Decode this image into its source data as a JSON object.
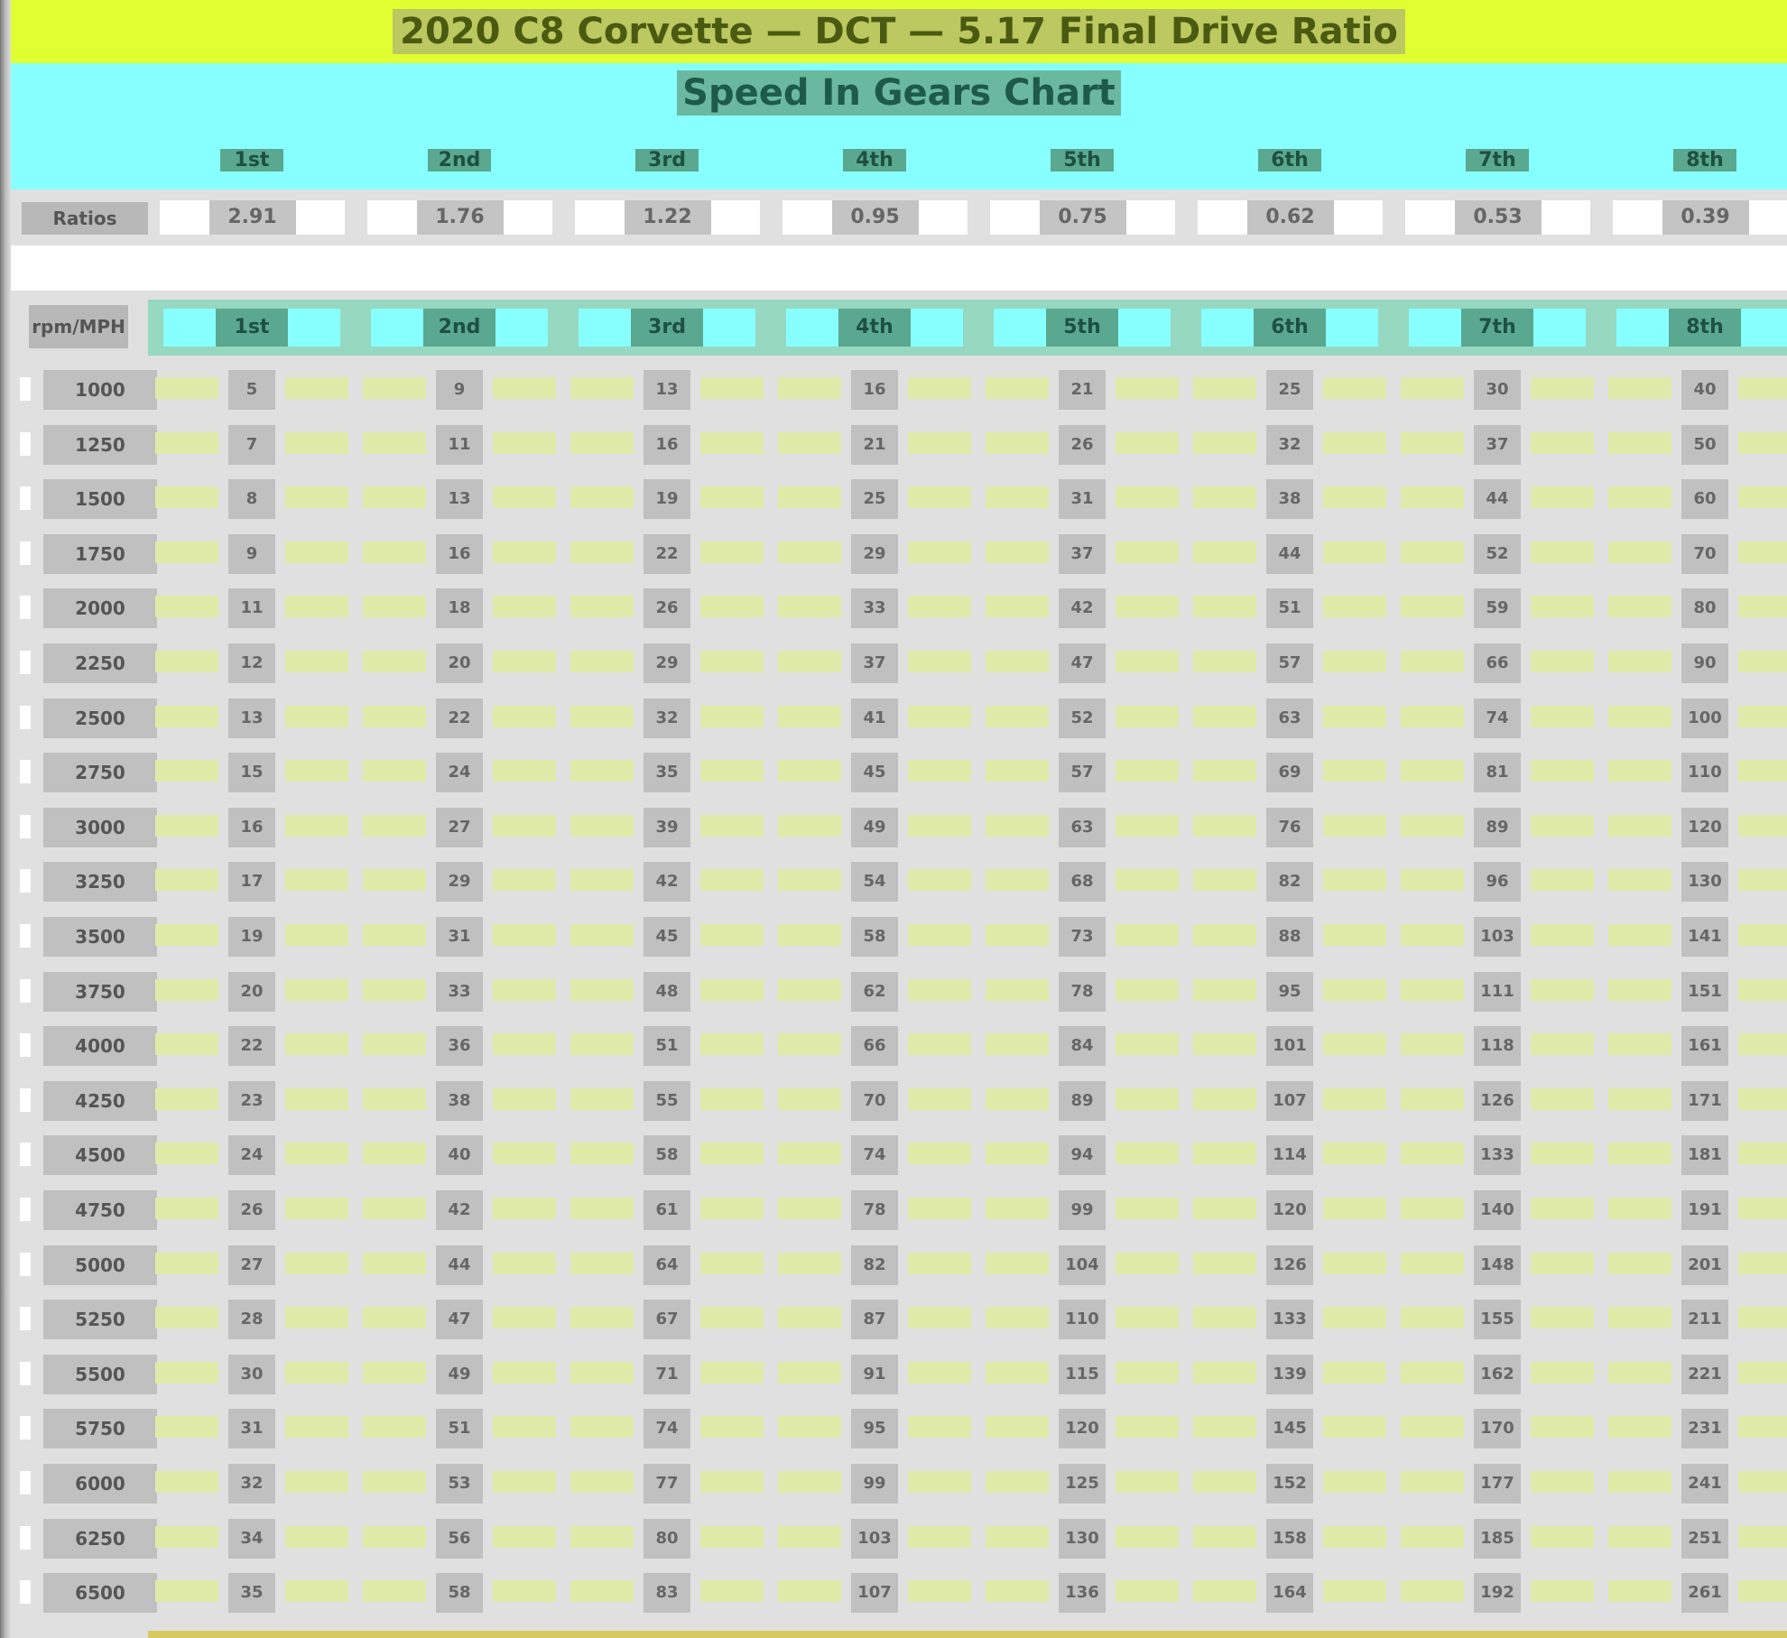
{
  "title": "2020 C8 Corvette — DCT — 5.17 Final Drive Ratio",
  "subtitle": "Speed In Gears Chart",
  "gears": [
    "1st",
    "2nd",
    "3rd",
    "4th",
    "5th",
    "6th",
    "7th",
    "8th"
  ],
  "ratios_label": "Ratios",
  "ratios": [
    "2.91",
    "1.76",
    "1.22",
    "0.95",
    "0.75",
    "0.62",
    "0.53",
    "0.39"
  ],
  "table": {
    "corner_label": "rpm/MPH",
    "rows": [
      {
        "rpm": "1000",
        "mph": [
          "5",
          "9",
          "13",
          "16",
          "21",
          "25",
          "30",
          "40"
        ]
      },
      {
        "rpm": "1250",
        "mph": [
          "7",
          "11",
          "16",
          "21",
          "26",
          "32",
          "37",
          "50"
        ]
      },
      {
        "rpm": "1500",
        "mph": [
          "8",
          "13",
          "19",
          "25",
          "31",
          "38",
          "44",
          "60"
        ]
      },
      {
        "rpm": "1750",
        "mph": [
          "9",
          "16",
          "22",
          "29",
          "37",
          "44",
          "52",
          "70"
        ]
      },
      {
        "rpm": "2000",
        "mph": [
          "11",
          "18",
          "26",
          "33",
          "42",
          "51",
          "59",
          "80"
        ]
      },
      {
        "rpm": "2250",
        "mph": [
          "12",
          "20",
          "29",
          "37",
          "47",
          "57",
          "66",
          "90"
        ]
      },
      {
        "rpm": "2500",
        "mph": [
          "13",
          "22",
          "32",
          "41",
          "52",
          "63",
          "74",
          "100"
        ]
      },
      {
        "rpm": "2750",
        "mph": [
          "15",
          "24",
          "35",
          "45",
          "57",
          "69",
          "81",
          "110"
        ]
      },
      {
        "rpm": "3000",
        "mph": [
          "16",
          "27",
          "39",
          "49",
          "63",
          "76",
          "89",
          "120"
        ]
      },
      {
        "rpm": "3250",
        "mph": [
          "17",
          "29",
          "42",
          "54",
          "68",
          "82",
          "96",
          "130"
        ]
      },
      {
        "rpm": "3500",
        "mph": [
          "19",
          "31",
          "45",
          "58",
          "73",
          "88",
          "103",
          "141"
        ]
      },
      {
        "rpm": "3750",
        "mph": [
          "20",
          "33",
          "48",
          "62",
          "78",
          "95",
          "111",
          "151"
        ]
      },
      {
        "rpm": "4000",
        "mph": [
          "22",
          "36",
          "51",
          "66",
          "84",
          "101",
          "118",
          "161"
        ]
      },
      {
        "rpm": "4250",
        "mph": [
          "23",
          "38",
          "55",
          "70",
          "89",
          "107",
          "126",
          "171"
        ]
      },
      {
        "rpm": "4500",
        "mph": [
          "24",
          "40",
          "58",
          "74",
          "94",
          "114",
          "133",
          "181"
        ]
      },
      {
        "rpm": "4750",
        "mph": [
          "26",
          "42",
          "61",
          "78",
          "99",
          "120",
          "140",
          "191"
        ]
      },
      {
        "rpm": "5000",
        "mph": [
          "27",
          "44",
          "64",
          "82",
          "104",
          "126",
          "148",
          "201"
        ]
      },
      {
        "rpm": "5250",
        "mph": [
          "28",
          "47",
          "67",
          "87",
          "110",
          "133",
          "155",
          "211"
        ]
      },
      {
        "rpm": "5500",
        "mph": [
          "30",
          "49",
          "71",
          "91",
          "115",
          "139",
          "162",
          "221"
        ]
      },
      {
        "rpm": "5750",
        "mph": [
          "31",
          "51",
          "74",
          "95",
          "120",
          "145",
          "170",
          "231"
        ]
      },
      {
        "rpm": "6000",
        "mph": [
          "32",
          "53",
          "77",
          "99",
          "125",
          "152",
          "177",
          "241"
        ]
      },
      {
        "rpm": "6250",
        "mph": [
          "34",
          "56",
          "80",
          "103",
          "130",
          "158",
          "185",
          "251"
        ]
      },
      {
        "rpm": "6500",
        "mph": [
          "35",
          "58",
          "83",
          "107",
          "136",
          "164",
          "192",
          "261"
        ]
      }
    ]
  },
  "colors": {
    "title_bar": "#e0ff30",
    "header_band": "#88ffff",
    "header_text_bg": "#5aa890",
    "cell_highlight": "#e0eaa8",
    "grid_bg": "#e0e0e0"
  }
}
